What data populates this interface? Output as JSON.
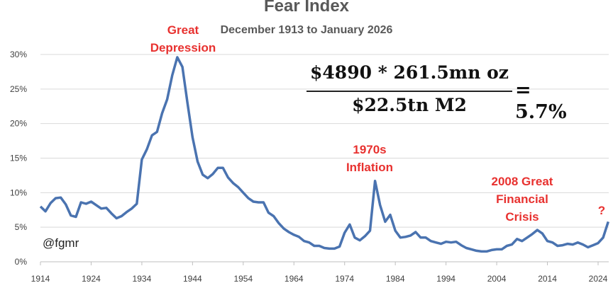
{
  "chart_data": {
    "type": "line",
    "title": "Fear Index",
    "subtitle": "December 1913 to January 2026",
    "xlabel": "",
    "ylabel": "",
    "ylim": [
      0,
      30
    ],
    "xlim": [
      1914,
      2026
    ],
    "y_ticks": [
      "0%",
      "5%",
      "10%",
      "15%",
      "20%",
      "25%",
      "30%"
    ],
    "x_ticks": [
      "1914",
      "1924",
      "1934",
      "1944",
      "1954",
      "1964",
      "1974",
      "1984",
      "1994",
      "2004",
      "2014",
      "2024"
    ],
    "grid": "horizontal",
    "line_color": "#4a73b0",
    "annotation_color": "#e8312f",
    "x": [
      1914,
      1915,
      1916,
      1917,
      1918,
      1919,
      1920,
      1921,
      1922,
      1923,
      1924,
      1925,
      1926,
      1927,
      1928,
      1929,
      1930,
      1931,
      1932,
      1933,
      1934,
      1935,
      1936,
      1937,
      1938,
      1939,
      1940,
      1941,
      1942,
      1943,
      1944,
      1945,
      1946,
      1947,
      1948,
      1949,
      1950,
      1951,
      1952,
      1953,
      1954,
      1955,
      1956,
      1957,
      1958,
      1959,
      1960,
      1961,
      1962,
      1963,
      1964,
      1965,
      1966,
      1967,
      1968,
      1969,
      1970,
      1971,
      1972,
      1973,
      1974,
      1975,
      1976,
      1977,
      1978,
      1979,
      1980,
      1981,
      1982,
      1983,
      1984,
      1985,
      1986,
      1987,
      1988,
      1989,
      1990,
      1991,
      1992,
      1993,
      1994,
      1995,
      1996,
      1997,
      1998,
      1999,
      2000,
      2001,
      2002,
      2003,
      2004,
      2005,
      2006,
      2007,
      2008,
      2009,
      2010,
      2011,
      2012,
      2013,
      2014,
      2015,
      2016,
      2017,
      2018,
      2019,
      2020,
      2021,
      2022,
      2023,
      2024,
      2025,
      2026
    ],
    "values": [
      8.0,
      7.3,
      8.5,
      9.2,
      9.3,
      8.3,
      6.7,
      6.5,
      8.6,
      8.4,
      8.7,
      8.2,
      7.7,
      7.8,
      7.0,
      6.3,
      6.6,
      7.2,
      7.7,
      8.4,
      14.8,
      16.3,
      18.3,
      18.8,
      21.5,
      23.5,
      27.0,
      29.6,
      28.2,
      23.0,
      18.0,
      14.5,
      12.6,
      12.1,
      12.7,
      13.6,
      13.6,
      12.2,
      11.4,
      10.8,
      10.0,
      9.2,
      8.7,
      8.6,
      8.6,
      7.1,
      6.6,
      5.6,
      4.8,
      4.3,
      3.9,
      3.6,
      3.0,
      2.8,
      2.3,
      2.3,
      2.0,
      1.9,
      1.9,
      2.2,
      4.2,
      5.4,
      3.5,
      3.1,
      3.7,
      4.5,
      11.7,
      8.2,
      5.8,
      6.8,
      4.5,
      3.5,
      3.6,
      3.8,
      4.3,
      3.5,
      3.5,
      3.0,
      2.8,
      2.6,
      2.9,
      2.8,
      2.9,
      2.4,
      2.0,
      1.8,
      1.6,
      1.5,
      1.5,
      1.7,
      1.8,
      1.8,
      2.3,
      2.5,
      3.3,
      3.0,
      3.5,
      4.0,
      4.6,
      4.1,
      3.0,
      2.8,
      2.3,
      2.4,
      2.6,
      2.5,
      2.8,
      2.5,
      2.1,
      2.4,
      2.7,
      3.5,
      5.8
    ],
    "annotations": [
      {
        "lines": [
          "Great",
          "Depression"
        ]
      },
      {
        "lines": [
          "1970s",
          "Inflation"
        ]
      },
      {
        "lines": [
          "2008 Great",
          "Financial",
          "Crisis"
        ]
      },
      {
        "lines": [
          "?"
        ]
      }
    ]
  },
  "formula": {
    "numerator": "$4890 * 261.5mn oz",
    "denominator": "$22.5tn M2",
    "result": "= 5.7%"
  },
  "watermark": "@fgmr"
}
